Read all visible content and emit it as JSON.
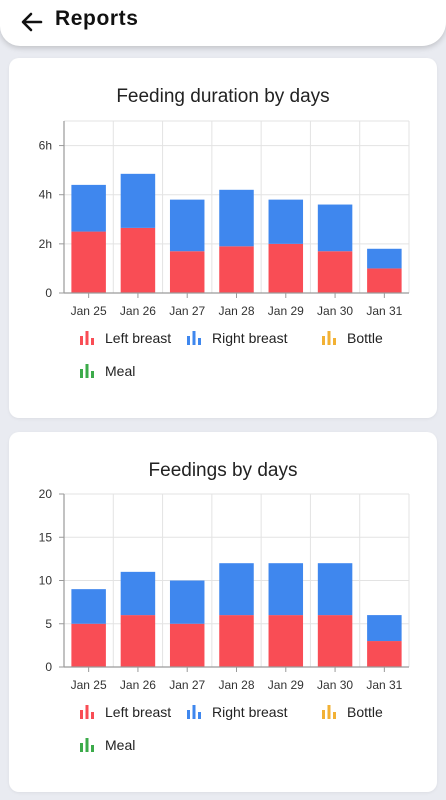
{
  "header": {
    "title": "Reports",
    "back_icon": "arrow-left-icon"
  },
  "colors": {
    "left_breast": "#f94d55",
    "right_breast": "#3f87ee",
    "bottle": "#f2b134",
    "meal": "#3cab4a",
    "grid": "#e3e3e3",
    "axis": "#9a9a9a"
  },
  "legend": [
    {
      "label": "Left breast",
      "color": "#f94d55",
      "icon": "bar-chart-icon"
    },
    {
      "label": "Right breast",
      "color": "#3f87ee",
      "icon": "bar-chart-icon"
    },
    {
      "label": "Bottle",
      "color": "#f2b134",
      "icon": "bar-chart-icon"
    },
    {
      "label": "Meal",
      "color": "#3cab4a",
      "icon": "bar-chart-icon"
    }
  ],
  "chart_data": [
    {
      "type": "bar",
      "stacked": true,
      "title": "Feeding duration by days",
      "categories": [
        "Jan 25",
        "Jan 26",
        "Jan 27",
        "Jan 28",
        "Jan 29",
        "Jan 30",
        "Jan 31"
      ],
      "ylim": [
        0,
        7
      ],
      "yticks": [
        0,
        2,
        4,
        6
      ],
      "ytick_labels": [
        "0",
        "2h",
        "4h",
        "6h"
      ],
      "series": [
        {
          "name": "Left breast",
          "values": [
            2.5,
            2.65,
            1.7,
            1.9,
            2.0,
            1.7,
            1.0
          ]
        },
        {
          "name": "Right breast",
          "values": [
            1.9,
            2.2,
            2.1,
            2.3,
            1.8,
            1.9,
            0.8
          ]
        },
        {
          "name": "Bottle",
          "values": [
            0,
            0,
            0,
            0,
            0,
            0,
            0
          ]
        },
        {
          "name": "Meal",
          "values": [
            0,
            0,
            0,
            0,
            0,
            0,
            0
          ]
        }
      ]
    },
    {
      "type": "bar",
      "stacked": true,
      "title": "Feedings by days",
      "categories": [
        "Jan 25",
        "Jan 26",
        "Jan 27",
        "Jan 28",
        "Jan 29",
        "Jan 30",
        "Jan 31"
      ],
      "ylim": [
        0,
        20
      ],
      "yticks": [
        0,
        5,
        10,
        15,
        20
      ],
      "ytick_labels": [
        "0",
        "5",
        "10",
        "15",
        "20"
      ],
      "series": [
        {
          "name": "Left breast",
          "values": [
            5,
            6,
            5,
            6,
            6,
            6,
            3
          ]
        },
        {
          "name": "Right breast",
          "values": [
            4,
            5,
            5,
            6,
            6,
            6,
            3
          ]
        },
        {
          "name": "Bottle",
          "values": [
            0,
            0,
            0,
            0,
            0,
            0,
            0
          ]
        },
        {
          "name": "Meal",
          "values": [
            0,
            0,
            0,
            0,
            0,
            0,
            0
          ]
        }
      ]
    }
  ]
}
